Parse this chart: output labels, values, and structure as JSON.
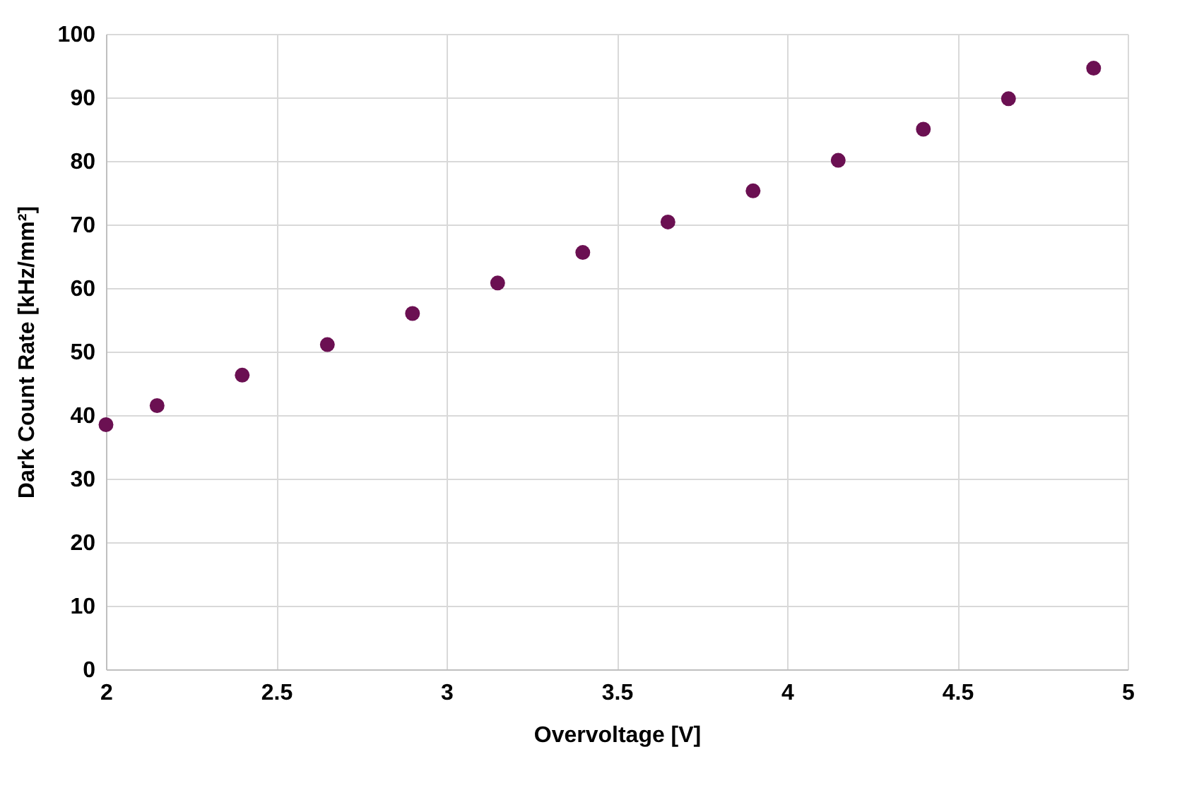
{
  "chart_data": {
    "type": "scatter",
    "xlabel": "Overvoltage [V]",
    "ylabel": "Dark Count Rate [kHz/mm²]",
    "x": [
      2,
      2.15,
      2.4,
      2.65,
      2.9,
      3.15,
      3.4,
      3.65,
      3.9,
      4.15,
      4.4,
      4.65,
      4.9
    ],
    "series": [
      {
        "color": "#6b1052",
        "values": [
          38.5,
          41.5,
          46.3,
          51.1,
          56,
          60.8,
          65.6,
          70.4,
          75.3,
          80.1,
          85,
          89.8,
          94.6
        ]
      }
    ],
    "xlim": [
      2,
      5
    ],
    "xticks": [
      2,
      2.5,
      3,
      3.5,
      4,
      4.5,
      5
    ],
    "ylim": [
      0,
      100
    ],
    "yticks": [
      0,
      10,
      20,
      30,
      40,
      50,
      60,
      70,
      80,
      90,
      100
    ],
    "grid": true,
    "marker": "circle"
  }
}
